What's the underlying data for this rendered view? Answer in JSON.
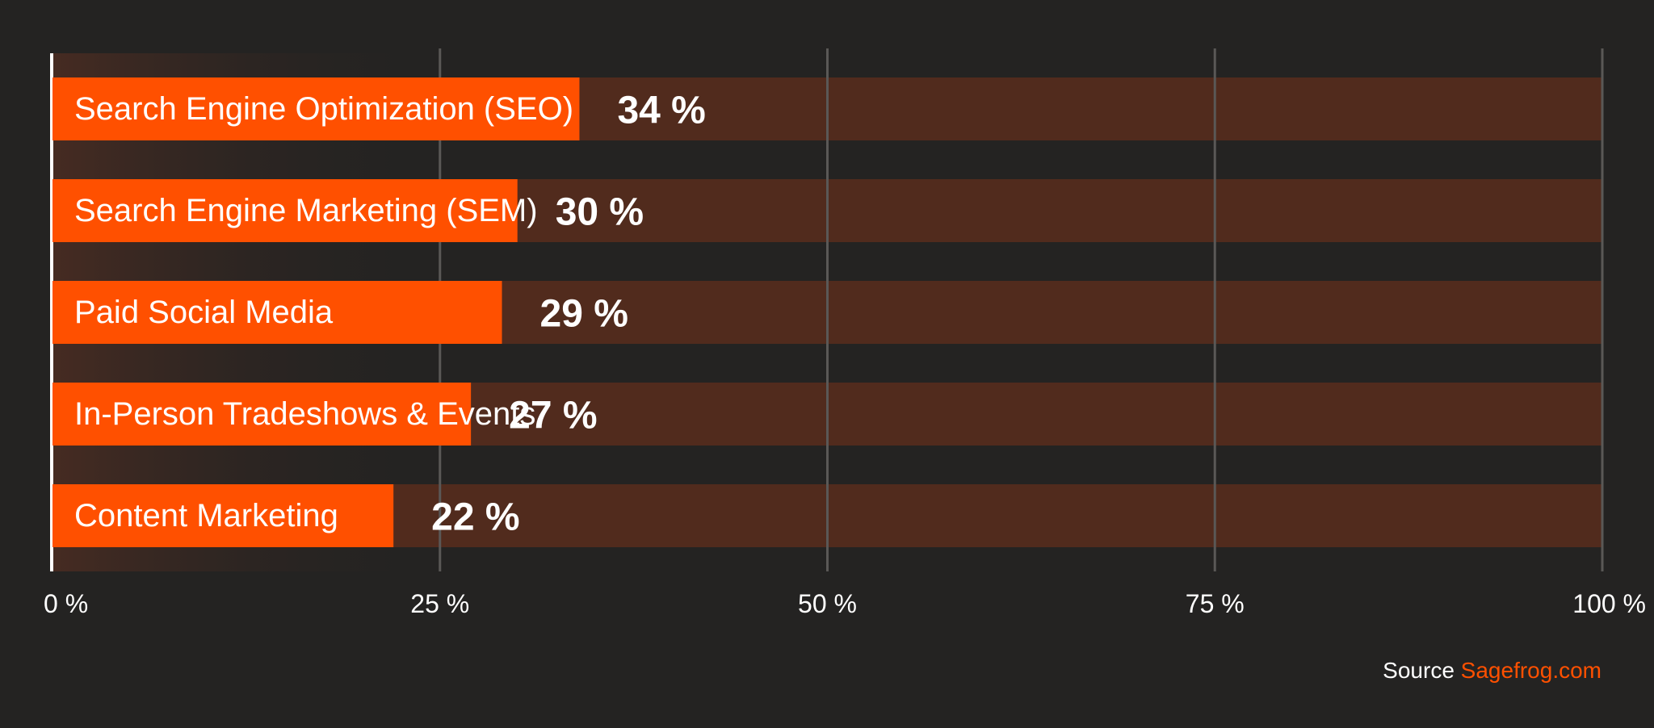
{
  "chart_data": {
    "type": "bar",
    "orientation": "horizontal",
    "categories": [
      "Search Engine Optimization (SEO)",
      "Search Engine Marketing (SEM)",
      "Paid Social Media",
      "In-Person Tradeshows & Events",
      "Content Marketing"
    ],
    "values": [
      34,
      30,
      29,
      27,
      22
    ],
    "value_labels": [
      "34 %",
      "30 %",
      "29 %",
      "27 %",
      "22 %"
    ],
    "max": 100,
    "xlim": [
      0,
      100
    ],
    "x_ticks": [
      0,
      25,
      50,
      75,
      100
    ],
    "x_tick_labels": [
      "0 %",
      "25 %",
      "50 %",
      "75 %",
      "100 %"
    ],
    "grid": true,
    "title": "",
    "xlabel": "",
    "ylabel": ""
  },
  "source": {
    "prefix": "Source",
    "name": "Sagefrog.com"
  },
  "colors": {
    "background": "#242322",
    "bar": "#ff5000",
    "track": "#512b1d",
    "grid": "#5a5856",
    "axis": "#ffffff",
    "source_accent": "#ff5000"
  }
}
